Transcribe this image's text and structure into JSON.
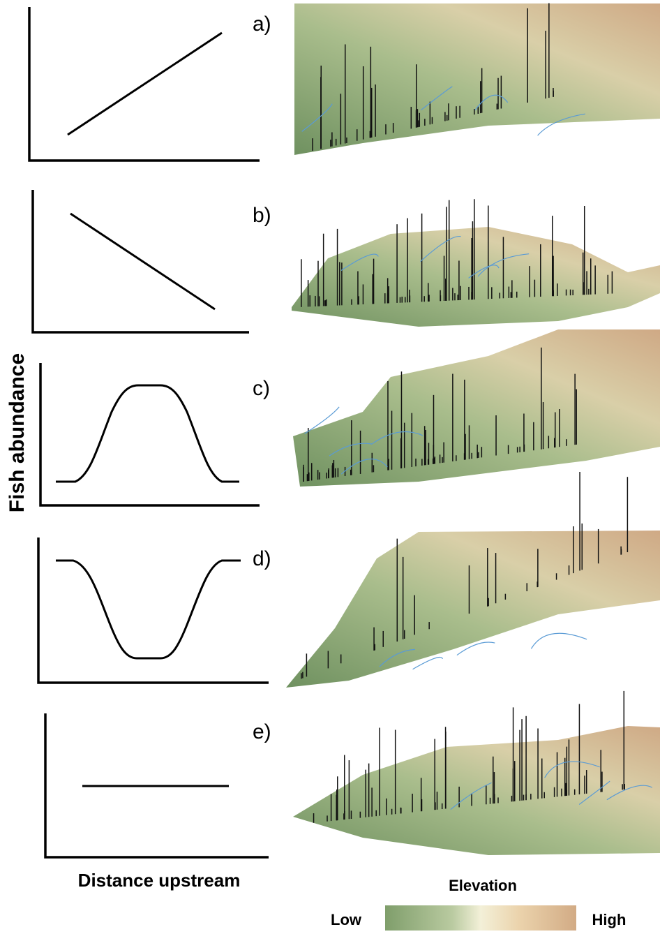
{
  "panels": [
    {
      "label": "a)"
    },
    {
      "label": "b)"
    },
    {
      "label": "c)"
    },
    {
      "label": "d)"
    },
    {
      "label": "e)"
    }
  ],
  "y_axis_label": "Fish abundance",
  "x_axis_label": "Distance upstream",
  "legend": {
    "title": "Elevation",
    "low": "Low",
    "high": "High"
  }
}
